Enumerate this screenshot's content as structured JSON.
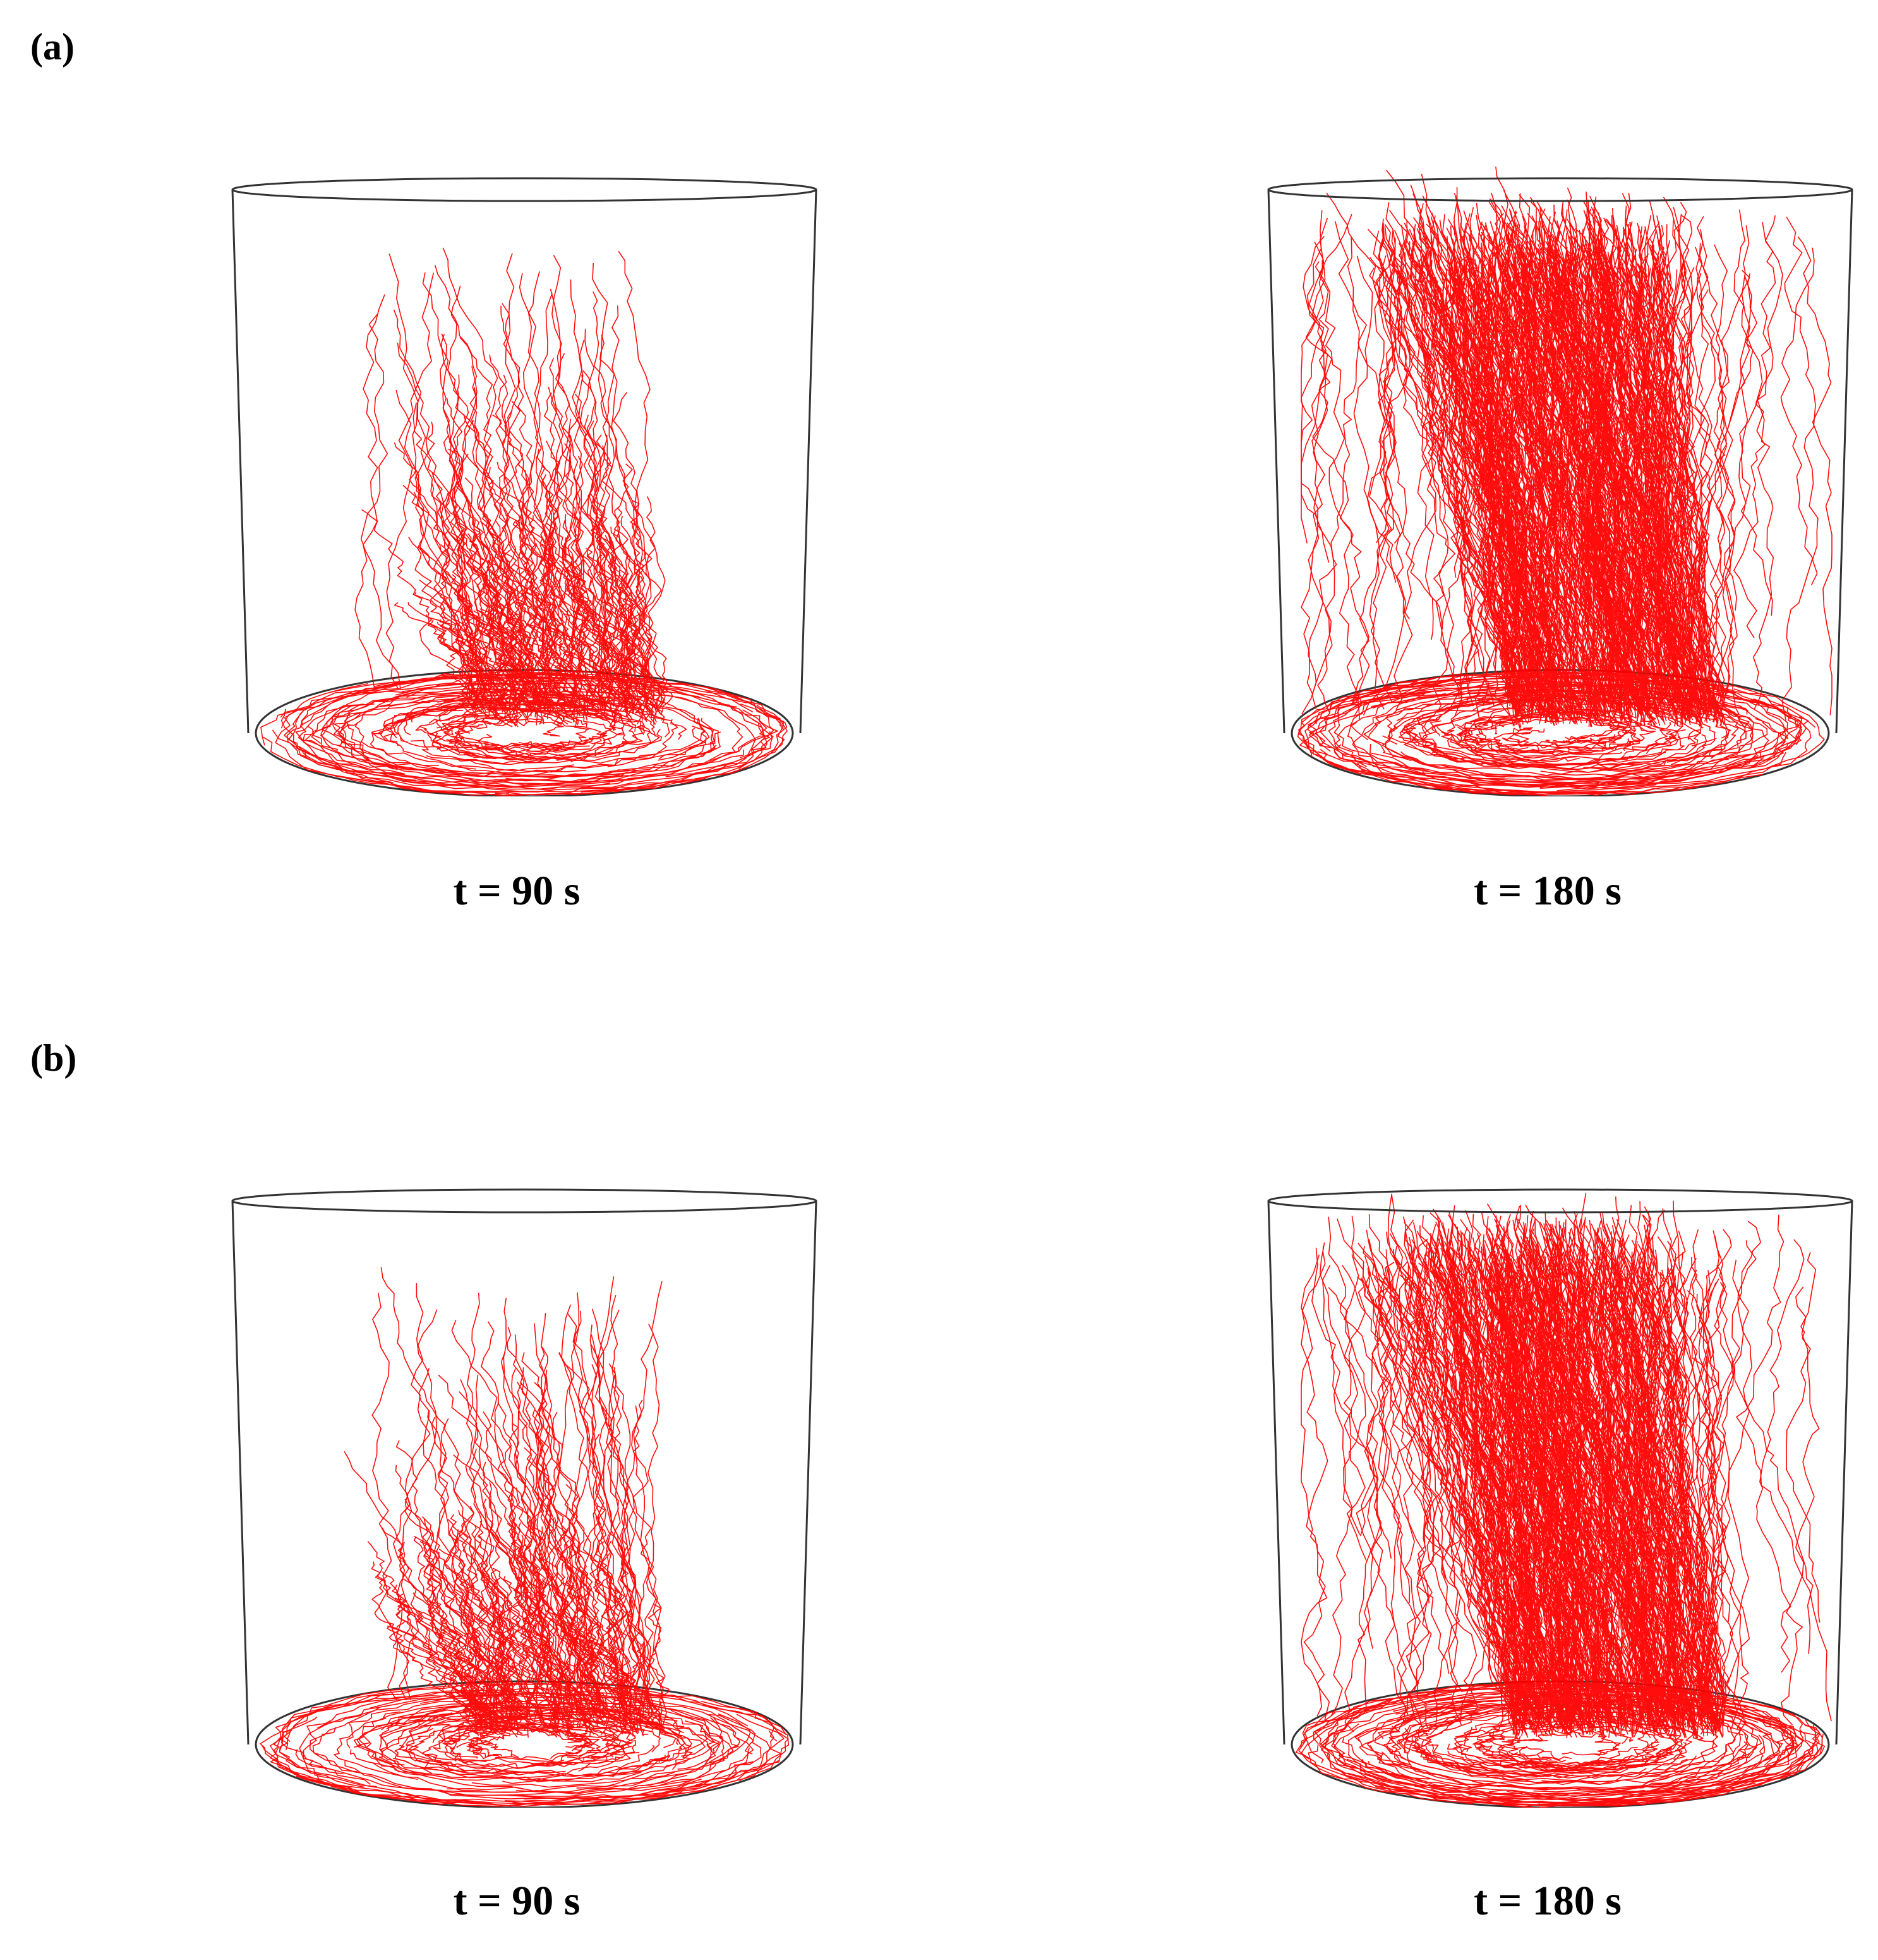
{
  "figure": {
    "panels": [
      {
        "label": "(a)",
        "frames": [
          {
            "caption": "t = 90 s",
            "trajectory_spread": "lower-center plume"
          },
          {
            "caption": "t = 180 s",
            "trajectory_spread": "fills full height"
          }
        ]
      },
      {
        "label": "(b)",
        "frames": [
          {
            "caption": "t = 90 s",
            "trajectory_spread": "lower-center plume"
          },
          {
            "caption": "t = 180 s",
            "trajectory_spread": "fills full height"
          }
        ]
      }
    ],
    "colors": {
      "trajectory": "#ff0000",
      "vessel_outline": "#333333"
    }
  }
}
